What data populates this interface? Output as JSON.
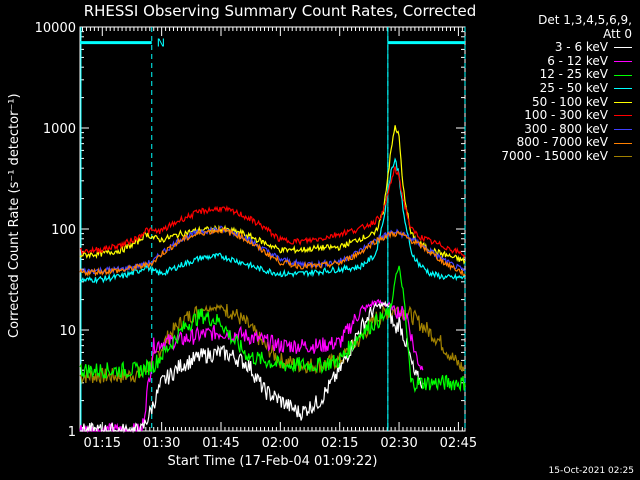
{
  "chart_data": {
    "type": "line",
    "title": "RHESSI Observing Summary Count Rates, Corrected",
    "xlabel": "Start Time (17-Feb-04 01:09:22)",
    "ylabel": "Corrected Count Rate (s⁻¹ detector⁻¹)",
    "yscale": "log",
    "ylim": [
      1,
      10000
    ],
    "xlim": [
      "01:09:22",
      "02:46:40"
    ],
    "y_ticks": [
      "1",
      "10",
      "100",
      "1000",
      "10000"
    ],
    "x_ticks": [
      "01:15",
      "01:30",
      "01:45",
      "02:00",
      "02:15",
      "02:30",
      "02:45"
    ],
    "grid": false,
    "legend_position": "top-right",
    "legend_header": [
      "Det 1,3,4,5,6,9,",
      "Att 0"
    ],
    "flags": {
      "night": [
        [
          "01:09:22",
          "01:27:30"
        ],
        [
          "02:27:10",
          "02:46:40"
        ]
      ],
      "night_level": 7000,
      "saa_label": "N",
      "saa_label_time": "01:28:00",
      "dashed_times": [
        "01:27:30",
        "02:27:10",
        "02:46:40"
      ]
    },
    "series": [
      {
        "name": "3 - 6 keV",
        "color": "#ffffff",
        "x": [
          "01:09:22",
          "01:20",
          "01:25",
          "01:27",
          "01:30",
          "01:35",
          "01:40",
          "01:45",
          "01:48",
          "01:52",
          "01:56",
          "02:00",
          "02:05",
          "02:10",
          "02:15",
          "02:20",
          "02:24",
          "02:27",
          "02:29",
          "02:30",
          "02:32",
          "02:34",
          "02:36"
        ],
        "y": [
          1,
          1,
          1,
          1.5,
          3,
          4.5,
          5.5,
          6,
          5.5,
          4.5,
          2.5,
          2,
          1.5,
          2,
          4,
          10,
          17,
          18,
          10,
          12,
          7,
          3.5,
          3
        ]
      },
      {
        "name": "6 - 12 keV",
        "color": "#ff00ff",
        "x": [
          "01:09:22",
          "01:20",
          "01:25",
          "01:28",
          "01:30",
          "01:35",
          "01:40",
          "01:45",
          "01:50",
          "01:55",
          "02:00",
          "02:05",
          "02:10",
          "02:15",
          "02:20",
          "02:24",
          "02:27",
          "02:29",
          "02:30",
          "02:32",
          "02:34",
          "02:36"
        ],
        "y": [
          1,
          1,
          1,
          7,
          7.5,
          8,
          9,
          9.5,
          9,
          8,
          7,
          7,
          7,
          7.5,
          15,
          19,
          18,
          16,
          15,
          14,
          6,
          4
        ]
      },
      {
        "name": "12 - 25 keV",
        "color": "#00ff00",
        "x": [
          "01:09:22",
          "01:15",
          "01:20",
          "01:25",
          "01:28",
          "01:32",
          "01:36",
          "01:40",
          "01:45",
          "01:48",
          "01:52",
          "01:56",
          "02:00",
          "02:05",
          "02:10",
          "02:15",
          "02:20",
          "02:24",
          "02:27",
          "02:28",
          "02:29",
          "02:30",
          "02:31",
          "02:33",
          "02:35",
          "02:40",
          "02:45",
          "02:46:40"
        ],
        "y": [
          4,
          4,
          4,
          4,
          4.5,
          7,
          11,
          14,
          12,
          8,
          5.5,
          5,
          4.5,
          4.5,
          4.5,
          5,
          9,
          12,
          14,
          16,
          33,
          41,
          25,
          3,
          3,
          3,
          3,
          3
        ]
      },
      {
        "name": "25 - 50 keV",
        "color": "#00ffff",
        "x": [
          "01:09:22",
          "01:15",
          "01:20",
          "01:24",
          "01:26",
          "01:28",
          "01:30",
          "01:35",
          "01:40",
          "01:45",
          "01:50",
          "01:55",
          "02:00",
          "02:05",
          "02:10",
          "02:15",
          "02:20",
          "02:24",
          "02:26",
          "02:28",
          "02:29",
          "02:30",
          "02:31",
          "02:33",
          "02:35",
          "02:38",
          "02:42",
          "02:46:40"
        ],
        "y": [
          31,
          32,
          34,
          38,
          43,
          38,
          36,
          44,
          52,
          54,
          47,
          40,
          36,
          36,
          38,
          40,
          42,
          55,
          120,
          380,
          480,
          350,
          150,
          60,
          45,
          36,
          33,
          33
        ]
      },
      {
        "name": "50 - 100 keV",
        "color": "#ffff00",
        "x": [
          "01:09:22",
          "01:15",
          "01:20",
          "01:24",
          "01:26",
          "01:28",
          "01:30",
          "01:35",
          "01:40",
          "01:45",
          "01:50",
          "01:55",
          "02:00",
          "02:05",
          "02:10",
          "02:15",
          "02:20",
          "02:24",
          "02:26",
          "02:28",
          "02:29",
          "02:30",
          "02:31",
          "02:33",
          "02:35",
          "02:38",
          "02:42",
          "02:46:40"
        ],
        "y": [
          55,
          57,
          62,
          75,
          90,
          82,
          78,
          90,
          98,
          100,
          92,
          76,
          62,
          62,
          65,
          66,
          80,
          90,
          150,
          600,
          1050,
          820,
          260,
          90,
          72,
          62,
          55,
          48
        ]
      },
      {
        "name": "100 - 300 keV",
        "color": "#ff0000",
        "x": [
          "01:09:22",
          "01:15",
          "01:20",
          "01:24",
          "01:26",
          "01:28",
          "01:30",
          "01:35",
          "01:40",
          "01:45",
          "01:50",
          "01:55",
          "02:00",
          "02:05",
          "02:10",
          "02:15",
          "02:20",
          "02:24",
          "02:26",
          "02:28",
          "02:29",
          "02:30",
          "02:31",
          "02:33",
          "02:35",
          "02:38",
          "02:42",
          "02:46:40"
        ],
        "y": [
          60,
          63,
          70,
          82,
          98,
          95,
          96,
          125,
          150,
          160,
          140,
          110,
          78,
          75,
          80,
          90,
          100,
          120,
          145,
          300,
          390,
          330,
          200,
          100,
          85,
          75,
          66,
          55
        ]
      },
      {
        "name": "300 - 800 keV",
        "color": "#4040ff",
        "x": [
          "01:09:22",
          "01:15",
          "01:20",
          "01:24",
          "01:26",
          "01:28",
          "01:30",
          "01:35",
          "01:40",
          "01:45",
          "01:50",
          "01:55",
          "02:00",
          "02:05",
          "02:10",
          "02:15",
          "02:20",
          "02:24",
          "02:28",
          "02:30",
          "02:32",
          "02:35",
          "02:38",
          "02:42",
          "02:46:40"
        ],
        "y": [
          38,
          39,
          40,
          43,
          45,
          48,
          58,
          80,
          95,
          100,
          88,
          66,
          50,
          45,
          45,
          48,
          60,
          78,
          92,
          92,
          85,
          72,
          60,
          47,
          38
        ]
      },
      {
        "name": "800 - 7000 keV",
        "color": "#ff8000",
        "x": [
          "01:09:22",
          "01:15",
          "01:20",
          "01:24",
          "01:26",
          "01:28",
          "01:30",
          "01:35",
          "01:40",
          "01:45",
          "01:50",
          "01:55",
          "02:00",
          "02:05",
          "02:10",
          "02:15",
          "02:20",
          "02:24",
          "02:28",
          "02:30",
          "02:32",
          "02:35",
          "02:38",
          "02:42",
          "02:46:40"
        ],
        "y": [
          37,
          38,
          39,
          42,
          44,
          47,
          57,
          78,
          92,
          98,
          85,
          63,
          47,
          43,
          43,
          46,
          58,
          76,
          89,
          90,
          82,
          70,
          58,
          45,
          36
        ]
      },
      {
        "name": "7000 - 15000 keV",
        "color": "#a08000",
        "x": [
          "01:09:22",
          "01:20",
          "01:25",
          "01:28",
          "01:32",
          "01:36",
          "01:40",
          "01:44",
          "01:48",
          "01:52",
          "01:56",
          "02:00",
          "02:05",
          "02:10",
          "02:15",
          "02:20",
          "02:24",
          "02:27",
          "02:30",
          "02:33",
          "02:36",
          "02:40",
          "02:44",
          "02:46:40"
        ],
        "y": [
          3.5,
          3.5,
          3.7,
          5,
          9,
          13,
          16,
          17,
          15,
          11,
          7,
          5,
          4.5,
          4.5,
          5,
          8,
          13,
          15,
          16,
          14,
          11,
          8,
          5,
          4
        ]
      }
    ]
  },
  "footer": "15-Oct-2021 02:25"
}
